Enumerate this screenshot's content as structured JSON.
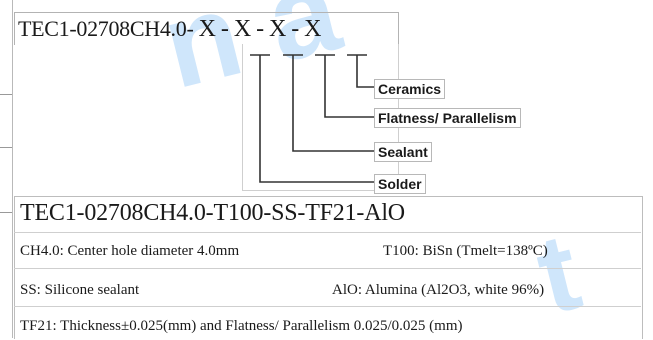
{
  "diagram": {
    "part_number_template": {
      "prefix": "TEC1-02708CH4.0-",
      "segments": [
        "X",
        "X",
        "X",
        "X"
      ],
      "separator": "-"
    },
    "callouts": [
      "Ceramics",
      "Flatness/ Parallelism",
      "Sealant",
      "Solder"
    ],
    "example": {
      "part_number": "TEC1-02708CH4.0-T100-SS-TF21-AlO",
      "definitions": [
        {
          "left": "CH4.0: Center hole diameter 4.0mm",
          "right": "T100: BiSn (Tmelt=138ºC)"
        },
        {
          "left": "SS: Silicone sealant",
          "right": "AlO: Alumina (Al2O3, white 96%)"
        },
        {
          "full": "TF21: Thickness±0.025(mm) and Flatness/ Parallelism 0.025/0.025 (mm)"
        }
      ]
    }
  },
  "colors": {
    "line": "#333333",
    "box_border": "#b3b3b3",
    "watermark": "#cfe6fb"
  }
}
